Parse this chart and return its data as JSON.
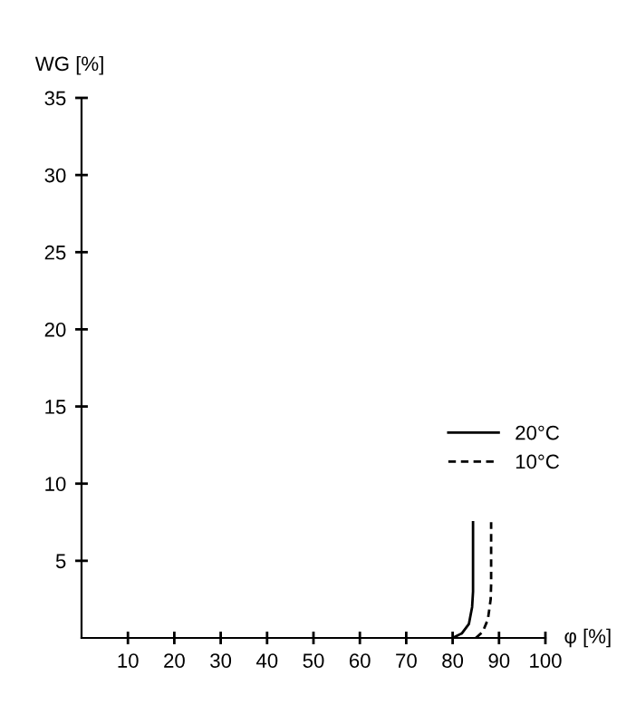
{
  "chart_data": {
    "type": "line",
    "xlabel": "φ [%]",
    "ylabel": "WG [%]",
    "xlim": [
      0,
      100
    ],
    "ylim": [
      0,
      35
    ],
    "xticks": [
      10,
      20,
      30,
      40,
      50,
      60,
      70,
      80,
      90,
      100
    ],
    "yticks": [
      5,
      10,
      15,
      20,
      25,
      30,
      35
    ],
    "grid": false,
    "legend": "right",
    "marker": "none",
    "series": [
      {
        "name": "20°C",
        "color": "#000000",
        "line_style": "solid",
        "x": [
          80,
          82,
          83.5,
          84.2,
          84.4,
          84.4
        ],
        "values": [
          0,
          0.3,
          0.9,
          2,
          3,
          7.5
        ]
      },
      {
        "name": "10°C",
        "color": "#000000",
        "line_style": "dashed",
        "x": [
          85,
          86.5,
          87.6,
          88.2,
          88.3,
          88.3
        ],
        "values": [
          0,
          0.4,
          1.2,
          2.5,
          3.5,
          7.5
        ]
      }
    ]
  }
}
